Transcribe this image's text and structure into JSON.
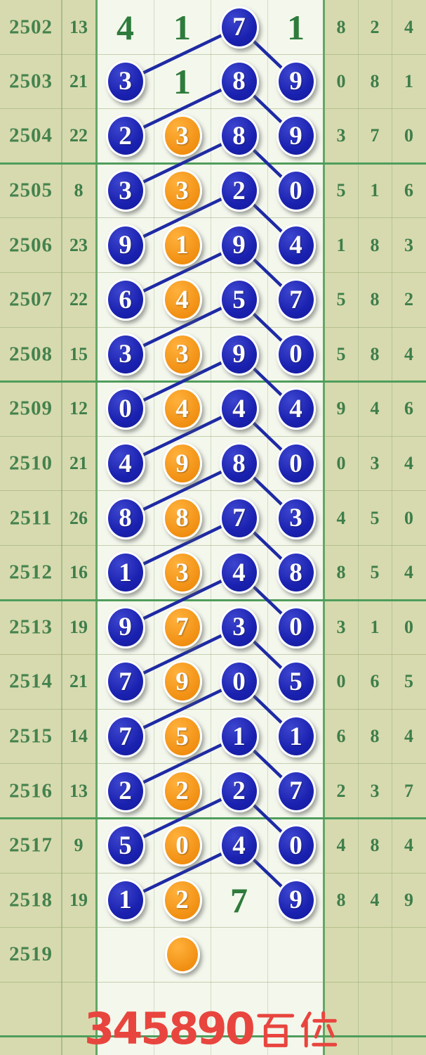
{
  "title": "lottery hundreds-position trend chart",
  "footer": {
    "digits": "345890",
    "suffix": "百位",
    "full_label": "345890百位"
  },
  "colors": {
    "khaki_panel": "#d7daae",
    "chart_background": "#f4f7ec",
    "green_text": "#3e7e4b",
    "thick_grid_green": "#4f9d5c",
    "ball_blue": "#1a21b0",
    "ball_orange": "#f19013",
    "trend_line_blue": "#1e2aa4",
    "footer_red": "#e8453e"
  },
  "chart_data": {
    "type": "table",
    "columns": [
      "period",
      "count",
      "chart_col_1",
      "chart_col_2",
      "chart_col_3",
      "chart_col_4",
      "right_1",
      "right_2",
      "right_3"
    ],
    "legend": "blue = circled draw number, orange = circled secondary number, plain = green number, lines connect chart_col_3 ball to next row col_1 and col_4 balls",
    "rows": [
      {
        "period": "2502",
        "count": "13",
        "cells": [
          {
            "v": "4",
            "t": "plain"
          },
          {
            "v": "1",
            "t": "plain"
          },
          {
            "v": "7",
            "t": "blue"
          },
          {
            "v": "1",
            "t": "plain"
          }
        ],
        "right": [
          "8",
          "2",
          "4"
        ]
      },
      {
        "period": "2503",
        "count": "21",
        "cells": [
          {
            "v": "3",
            "t": "blue"
          },
          {
            "v": "1",
            "t": "plain"
          },
          {
            "v": "8",
            "t": "blue"
          },
          {
            "v": "9",
            "t": "blue"
          }
        ],
        "right": [
          "0",
          "8",
          "1"
        ]
      },
      {
        "period": "2504",
        "count": "22",
        "cells": [
          {
            "v": "2",
            "t": "blue"
          },
          {
            "v": "3",
            "t": "orange"
          },
          {
            "v": "8",
            "t": "blue"
          },
          {
            "v": "9",
            "t": "blue"
          }
        ],
        "right": [
          "3",
          "7",
          "0"
        ]
      },
      {
        "period": "2505",
        "count": "8",
        "cells": [
          {
            "v": "3",
            "t": "blue"
          },
          {
            "v": "3",
            "t": "orange"
          },
          {
            "v": "2",
            "t": "blue"
          },
          {
            "v": "0",
            "t": "blue"
          }
        ],
        "right": [
          "5",
          "1",
          "6"
        ]
      },
      {
        "period": "2506",
        "count": "23",
        "cells": [
          {
            "v": "9",
            "t": "blue"
          },
          {
            "v": "1",
            "t": "orange"
          },
          {
            "v": "9",
            "t": "blue"
          },
          {
            "v": "4",
            "t": "blue"
          }
        ],
        "right": [
          "1",
          "8",
          "3"
        ]
      },
      {
        "period": "2507",
        "count": "22",
        "cells": [
          {
            "v": "6",
            "t": "blue"
          },
          {
            "v": "4",
            "t": "orange"
          },
          {
            "v": "5",
            "t": "blue"
          },
          {
            "v": "7",
            "t": "blue"
          }
        ],
        "right": [
          "5",
          "8",
          "2"
        ]
      },
      {
        "period": "2508",
        "count": "15",
        "cells": [
          {
            "v": "3",
            "t": "blue"
          },
          {
            "v": "3",
            "t": "orange"
          },
          {
            "v": "9",
            "t": "blue"
          },
          {
            "v": "0",
            "t": "blue"
          }
        ],
        "right": [
          "5",
          "8",
          "4"
        ]
      },
      {
        "period": "2509",
        "count": "12",
        "cells": [
          {
            "v": "0",
            "t": "blue"
          },
          {
            "v": "4",
            "t": "orange"
          },
          {
            "v": "4",
            "t": "blue"
          },
          {
            "v": "4",
            "t": "blue"
          }
        ],
        "right": [
          "9",
          "4",
          "6"
        ]
      },
      {
        "period": "2510",
        "count": "21",
        "cells": [
          {
            "v": "4",
            "t": "blue"
          },
          {
            "v": "9",
            "t": "orange"
          },
          {
            "v": "8",
            "t": "blue"
          },
          {
            "v": "0",
            "t": "blue"
          }
        ],
        "right": [
          "0",
          "3",
          "4"
        ]
      },
      {
        "period": "2511",
        "count": "26",
        "cells": [
          {
            "v": "8",
            "t": "blue"
          },
          {
            "v": "8",
            "t": "orange"
          },
          {
            "v": "7",
            "t": "blue"
          },
          {
            "v": "3",
            "t": "blue"
          }
        ],
        "right": [
          "4",
          "5",
          "0"
        ]
      },
      {
        "period": "2512",
        "count": "16",
        "cells": [
          {
            "v": "1",
            "t": "blue"
          },
          {
            "v": "3",
            "t": "orange"
          },
          {
            "v": "4",
            "t": "blue"
          },
          {
            "v": "8",
            "t": "blue"
          }
        ],
        "right": [
          "8",
          "5",
          "4"
        ]
      },
      {
        "period": "2513",
        "count": "19",
        "cells": [
          {
            "v": "9",
            "t": "blue"
          },
          {
            "v": "7",
            "t": "orange"
          },
          {
            "v": "3",
            "t": "blue"
          },
          {
            "v": "0",
            "t": "blue"
          }
        ],
        "right": [
          "3",
          "1",
          "0"
        ]
      },
      {
        "period": "2514",
        "count": "21",
        "cells": [
          {
            "v": "7",
            "t": "blue"
          },
          {
            "v": "9",
            "t": "orange"
          },
          {
            "v": "0",
            "t": "blue"
          },
          {
            "v": "5",
            "t": "blue"
          }
        ],
        "right": [
          "0",
          "6",
          "5"
        ]
      },
      {
        "period": "2515",
        "count": "14",
        "cells": [
          {
            "v": "7",
            "t": "blue"
          },
          {
            "v": "5",
            "t": "orange"
          },
          {
            "v": "1",
            "t": "blue"
          },
          {
            "v": "1",
            "t": "blue"
          }
        ],
        "right": [
          "6",
          "8",
          "4"
        ]
      },
      {
        "period": "2516",
        "count": "13",
        "cells": [
          {
            "v": "2",
            "t": "blue"
          },
          {
            "v": "2",
            "t": "orange"
          },
          {
            "v": "2",
            "t": "blue"
          },
          {
            "v": "7",
            "t": "blue"
          }
        ],
        "right": [
          "2",
          "3",
          "7"
        ]
      },
      {
        "period": "2517",
        "count": "9",
        "cells": [
          {
            "v": "5",
            "t": "blue"
          },
          {
            "v": "0",
            "t": "orange"
          },
          {
            "v": "4",
            "t": "blue"
          },
          {
            "v": "0",
            "t": "blue"
          }
        ],
        "right": [
          "4",
          "8",
          "4"
        ]
      },
      {
        "period": "2518",
        "count": "19",
        "cells": [
          {
            "v": "1",
            "t": "blue"
          },
          {
            "v": "2",
            "t": "orange"
          },
          {
            "v": "7",
            "t": "plain"
          },
          {
            "v": "9",
            "t": "blue"
          }
        ],
        "right": [
          "8",
          "4",
          "9"
        ]
      },
      {
        "period": "2519",
        "count": "",
        "cells": [
          null,
          {
            "v": "",
            "t": "orange"
          },
          null,
          null
        ],
        "right": [
          "",
          "",
          ""
        ]
      },
      {
        "period": "",
        "count": "",
        "cells": [
          null,
          null,
          null,
          null
        ],
        "right": [
          "",
          "",
          ""
        ]
      }
    ]
  }
}
